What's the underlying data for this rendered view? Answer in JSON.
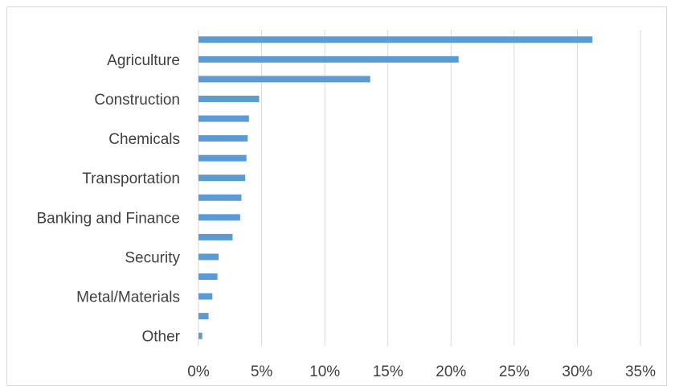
{
  "chart_data": {
    "type": "bar",
    "orientation": "horizontal",
    "title": "",
    "xlabel": "",
    "ylabel": "",
    "xlim": [
      0,
      0.35
    ],
    "x_ticks": [
      "0%",
      "5%",
      "10%",
      "15%",
      "20%",
      "25%",
      "30%",
      "35%"
    ],
    "grid": "vertical",
    "bar_color": "#5b9bd5",
    "categories": [
      "",
      "Agriculture",
      "",
      "Construction",
      "",
      "Chemicals",
      "",
      "Transportation",
      "",
      "Banking and Finance",
      "",
      "Security",
      "",
      "Metal/Materials",
      "",
      "Other"
    ],
    "values": [
      0.312,
      0.206,
      0.136,
      0.048,
      0.04,
      0.039,
      0.038,
      0.037,
      0.034,
      0.033,
      0.027,
      0.016,
      0.015,
      0.011,
      0.008,
      0.003
    ]
  }
}
